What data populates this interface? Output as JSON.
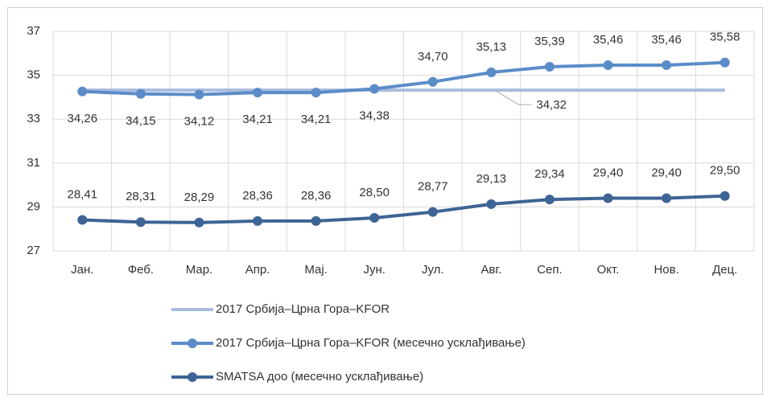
{
  "chart_data": {
    "type": "line",
    "categories": [
      "Јан.",
      "Феб.",
      "Мар.",
      "Апр.",
      "Мај.",
      "Јун.",
      "Јул.",
      "Авг.",
      "Сеп.",
      "Окт.",
      "Нов.",
      "Дец."
    ],
    "ylim": [
      27,
      37
    ],
    "yticks": [
      27,
      29,
      31,
      33,
      35,
      37
    ],
    "grid": true,
    "series": [
      {
        "name": "2017 Србија–Црна Гора–KFOR",
        "color": "#a9bcdc",
        "markers": false,
        "values": [
          34.32,
          34.32,
          34.32,
          34.32,
          34.32,
          34.32,
          34.32,
          34.32,
          34.32,
          34.32,
          34.32,
          34.32
        ],
        "value_labels": [
          null,
          null,
          null,
          null,
          null,
          null,
          null,
          "34,32",
          null,
          null,
          null,
          null
        ]
      },
      {
        "name": "2017 Србија–Црна Гора–KFOR (месечно усклађивање)",
        "color": "#5b8cc8",
        "markers": true,
        "values": [
          34.26,
          34.15,
          34.12,
          34.21,
          34.21,
          34.38,
          34.7,
          35.13,
          35.39,
          35.46,
          35.46,
          35.58
        ],
        "value_labels": [
          "34,26",
          "34,15",
          "34,12",
          "34,21",
          "34,21",
          "34,38",
          "34,70",
          "35,13",
          "35,39",
          "35,46",
          "35,46",
          "35,58"
        ]
      },
      {
        "name": "SMATSA доо (месечно усклађивање)",
        "color": "#3d6494",
        "markers": true,
        "values": [
          28.41,
          28.31,
          28.29,
          28.36,
          28.36,
          28.5,
          28.77,
          29.13,
          29.34,
          29.4,
          29.4,
          29.5
        ],
        "value_labels": [
          "28,41",
          "28,31",
          "28,29",
          "28,36",
          "28,36",
          "28,50",
          "28,77",
          "29,13",
          "29,34",
          "29,40",
          "29,40",
          "29,50"
        ]
      }
    ]
  }
}
